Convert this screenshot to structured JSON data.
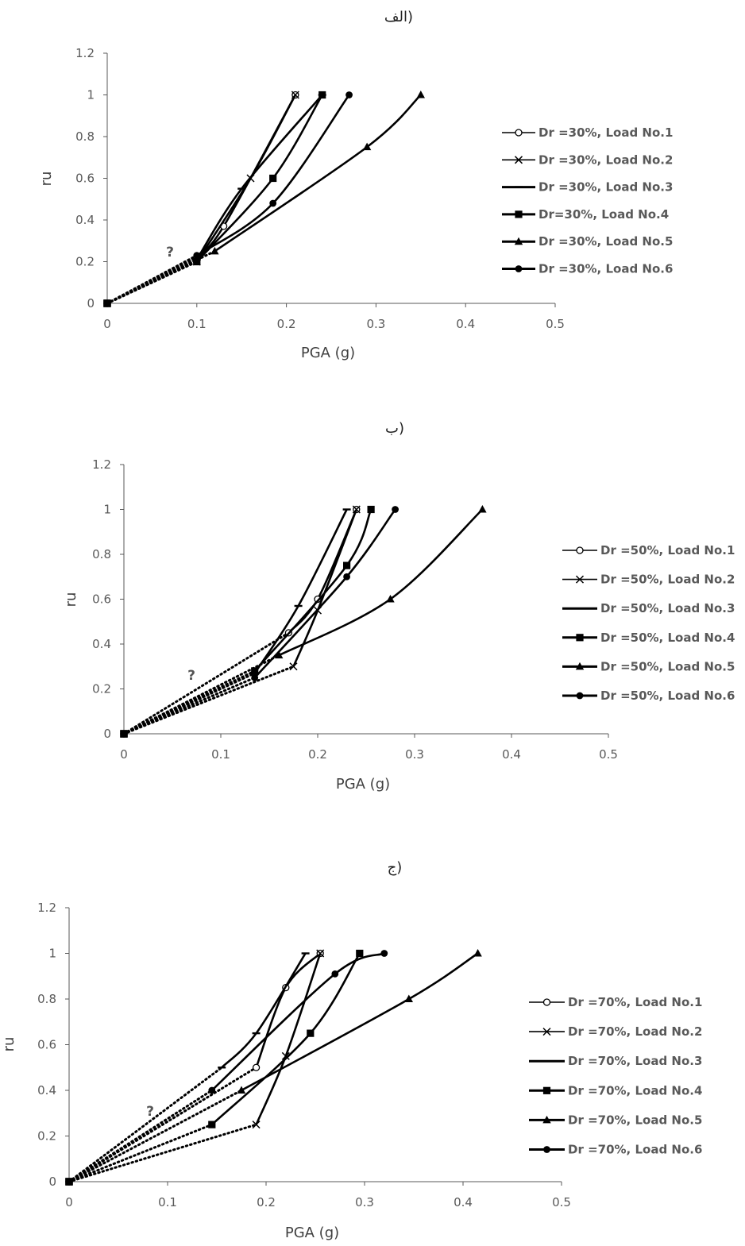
{
  "chart_data": [
    {
      "type": "line",
      "title": "الف)",
      "xlabel": "PGA (g)",
      "ylabel": "ru",
      "xlim": [
        0,
        0.5
      ],
      "ylim": [
        0,
        1.2
      ],
      "xticks": [
        "0",
        "0.1",
        "0.2",
        "0.3",
        "0.4",
        "0.5"
      ],
      "yticks": [
        "0",
        "0.2",
        "0.4",
        "0.6",
        "0.8",
        "1",
        "1.2"
      ],
      "annotation": "?",
      "legend_position": "right",
      "series": [
        {
          "name": "Dr =30%, Load No.1",
          "marker": "circle-open",
          "points": [
            [
              0,
              0
            ],
            [
              0.1,
              0.22
            ],
            [
              0.13,
              0.37
            ],
            [
              0.21,
              1.0
            ]
          ]
        },
        {
          "name": "Dr =30%, Load No.2",
          "marker": "x",
          "points": [
            [
              0,
              0
            ],
            [
              0.1,
              0.2
            ],
            [
              0.16,
              0.6
            ],
            [
              0.21,
              1.0
            ]
          ]
        },
        {
          "name": "Dr =30%, Load No.3",
          "marker": "none",
          "points": [
            [
              0,
              0
            ],
            [
              0.1,
              0.21
            ],
            [
              0.15,
              0.55
            ],
            [
              0.24,
              1.0
            ]
          ]
        },
        {
          "name": "Dr=30%, Load No.4",
          "marker": "square",
          "points": [
            [
              0,
              0
            ],
            [
              0.1,
              0.2
            ],
            [
              0.185,
              0.6
            ],
            [
              0.24,
              1.0
            ]
          ]
        },
        {
          "name": "Dr =30%, Load No.5",
          "marker": "triangle",
          "points": [
            [
              0,
              0
            ],
            [
              0.12,
              0.25
            ],
            [
              0.29,
              0.75
            ],
            [
              0.35,
              1.0
            ]
          ]
        },
        {
          "name": "Dr =30%, Load No.6",
          "marker": "circle",
          "points": [
            [
              0,
              0
            ],
            [
              0.1,
              0.23
            ],
            [
              0.185,
              0.48
            ],
            [
              0.27,
              1.0
            ]
          ]
        }
      ]
    },
    {
      "type": "line",
      "title": "ب)",
      "xlabel": "PGA (g)",
      "ylabel": "ru",
      "xlim": [
        0,
        0.5
      ],
      "ylim": [
        0,
        1.2
      ],
      "xticks": [
        "0",
        "0.1",
        "0.2",
        "0.3",
        "0.4",
        "0.5"
      ],
      "yticks": [
        "0",
        "0.2",
        "0.4",
        "0.6",
        "0.8",
        "1",
        "1.2"
      ],
      "annotation": "?",
      "legend_position": "right",
      "series": [
        {
          "name": "Dr =50%, Load No.1",
          "marker": "circle-open",
          "points": [
            [
              0,
              0
            ],
            [
              0.17,
              0.45
            ],
            [
              0.2,
              0.6
            ],
            [
              0.24,
              1.0
            ]
          ]
        },
        {
          "name": "Dr =50%, Load No.2",
          "marker": "x",
          "points": [
            [
              0,
              0
            ],
            [
              0.175,
              0.3
            ],
            [
              0.2,
              0.55
            ],
            [
              0.24,
              1.0
            ]
          ]
        },
        {
          "name": "Dr =50%, Load No.3",
          "marker": "none",
          "points": [
            [
              0,
              0
            ],
            [
              0.135,
              0.27
            ],
            [
              0.18,
              0.57
            ],
            [
              0.23,
              1.0
            ]
          ]
        },
        {
          "name": "Dr =50%, Load No.4",
          "marker": "square",
          "points": [
            [
              0,
              0
            ],
            [
              0.135,
              0.28
            ],
            [
              0.23,
              0.75
            ],
            [
              0.255,
              1.0
            ]
          ]
        },
        {
          "name": "Dr =50%, Load No.5",
          "marker": "triangle",
          "points": [
            [
              0,
              0
            ],
            [
              0.16,
              0.35
            ],
            [
              0.275,
              0.6
            ],
            [
              0.37,
              1.0
            ]
          ]
        },
        {
          "name": "Dr =50%, Load No.6",
          "marker": "circle",
          "points": [
            [
              0,
              0
            ],
            [
              0.135,
              0.25
            ],
            [
              0.23,
              0.7
            ],
            [
              0.28,
              1.0
            ]
          ]
        }
      ]
    },
    {
      "type": "line",
      "title": "ج)",
      "xlabel": "PGA (g)",
      "ylabel": "ru",
      "xlim": [
        0,
        0.5
      ],
      "ylim": [
        0,
        1.2
      ],
      "xticks": [
        "0",
        "0.1",
        "0.2",
        "0.3",
        "0.4",
        "0.5"
      ],
      "yticks": [
        "0",
        "0.2",
        "0.4",
        "0.6",
        "0.8",
        "1",
        "1.2"
      ],
      "annotation": "?",
      "legend_position": "right",
      "series": [
        {
          "name": "Dr =70%, Load No.1",
          "marker": "circle-open",
          "points": [
            [
              0,
              0
            ],
            [
              0.19,
              0.5
            ],
            [
              0.22,
              0.85
            ],
            [
              0.255,
              1.0
            ]
          ]
        },
        {
          "name": "Dr =70%, Load No.2",
          "marker": "x",
          "points": [
            [
              0,
              0
            ],
            [
              0.19,
              0.25
            ],
            [
              0.22,
              0.55
            ],
            [
              0.255,
              1.0
            ]
          ]
        },
        {
          "name": "Dr =70%, Load No.3",
          "marker": "none",
          "points": [
            [
              0,
              0
            ],
            [
              0.155,
              0.5
            ],
            [
              0.19,
              0.65
            ],
            [
              0.24,
              1.0
            ]
          ]
        },
        {
          "name": "Dr =70%, Load No.4",
          "marker": "square",
          "points": [
            [
              0,
              0
            ],
            [
              0.145,
              0.25
            ],
            [
              0.245,
              0.65
            ],
            [
              0.295,
              1.0
            ]
          ]
        },
        {
          "name": "Dr =70%, Load No.5",
          "marker": "triangle",
          "points": [
            [
              0,
              0
            ],
            [
              0.175,
              0.4
            ],
            [
              0.345,
              0.8
            ],
            [
              0.415,
              1.0
            ]
          ]
        },
        {
          "name": "Dr =70%, Load No.6",
          "marker": "circle",
          "points": [
            [
              0,
              0
            ],
            [
              0.145,
              0.4
            ],
            [
              0.27,
              0.91
            ],
            [
              0.32,
              1.0
            ]
          ]
        }
      ]
    }
  ]
}
